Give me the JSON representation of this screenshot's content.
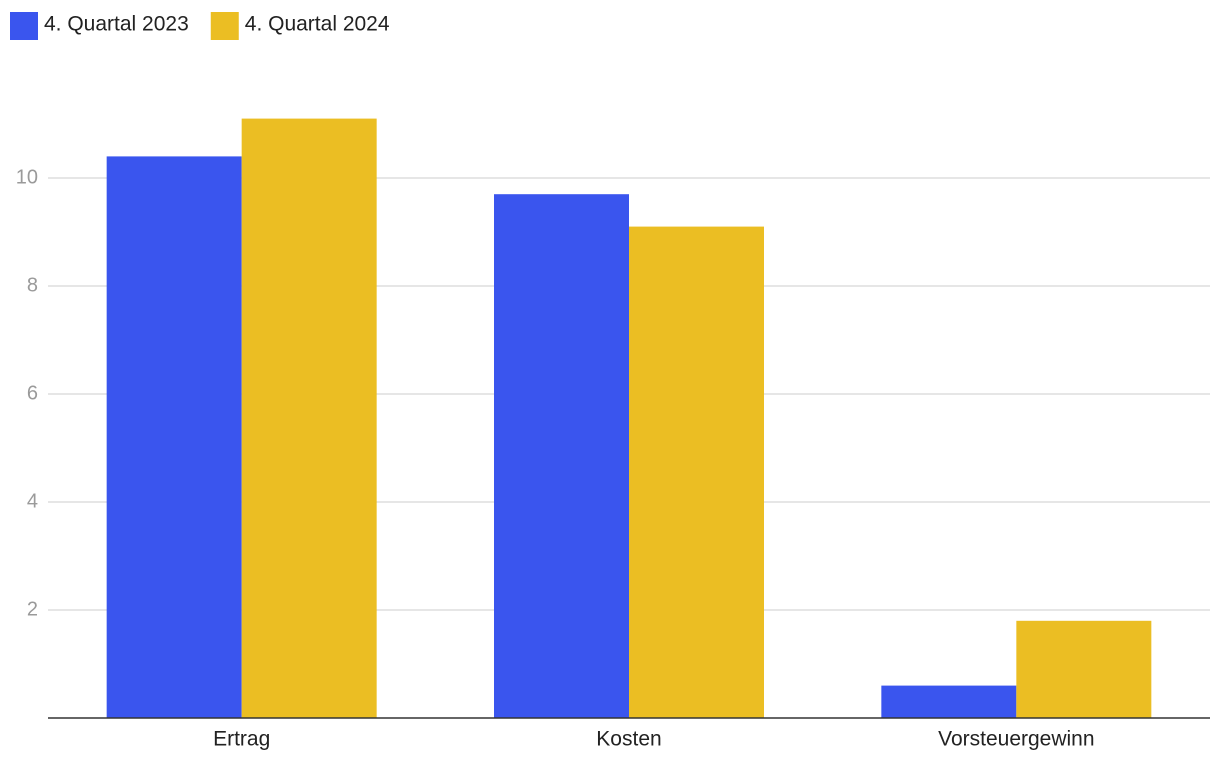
{
  "chart_data": {
    "type": "bar",
    "categories": [
      "Ertrag",
      "Kosten",
      "Vorsteuergewinn"
    ],
    "series": [
      {
        "name": "4. Quartal 2023",
        "color": "#3a55ee",
        "values": [
          10.4,
          9.7,
          0.6
        ]
      },
      {
        "name": "4. Quartal 2024",
        "color": "#ebbe23",
        "values": [
          11.1,
          9.1,
          1.8
        ]
      }
    ],
    "ylim": [
      0,
      12
    ],
    "yticks": [
      2,
      4,
      6,
      8,
      10
    ],
    "grid": true,
    "legend": "top-left"
  }
}
